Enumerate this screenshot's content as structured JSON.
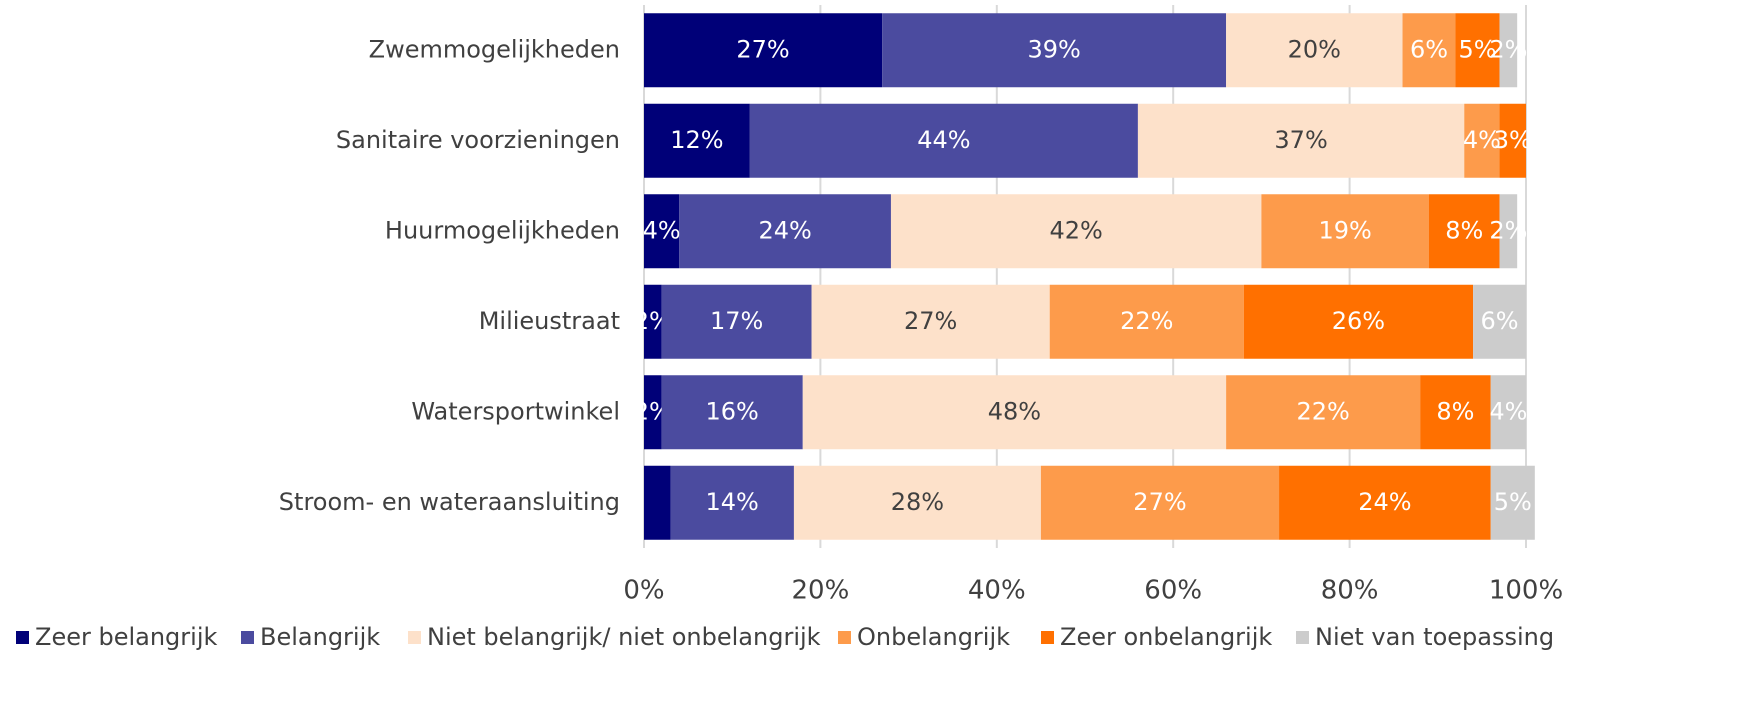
{
  "chart_data": {
    "type": "stacked-barh",
    "categories": [
      "Zwemmogelijkheden",
      "Sanitaire voorzieningen",
      "Huurmogelijkheden",
      "Milieustraat",
      "Watersportwinkel",
      "Stroom- en wateraansluiting"
    ],
    "series": [
      {
        "name": "Zeer belangrijk",
        "color": "#000078",
        "values": [
          27,
          12,
          4,
          2,
          2,
          3
        ],
        "value_labels": [
          "27%",
          "12%",
          "4%",
          "2%",
          "2%",
          null
        ]
      },
      {
        "name": "Belangrijk",
        "color": "#4b4b9f",
        "values": [
          39,
          44,
          24,
          17,
          16,
          14
        ],
        "value_labels": [
          "39%",
          "44%",
          "24%",
          "17%",
          "16%",
          "14%"
        ]
      },
      {
        "name": "Niet belangrijk/ niet onbelangrijk",
        "color": "#fde1ca",
        "values": [
          20,
          37,
          42,
          27,
          48,
          28
        ],
        "value_labels": [
          "20%",
          "37%",
          "42%",
          "27%",
          "48%",
          "28%"
        ]
      },
      {
        "name": "Onbelangrijk",
        "color": "#fd9b4b",
        "values": [
          6,
          4,
          19,
          22,
          22,
          27
        ],
        "value_labels": [
          "6%",
          "4%",
          "19%",
          "22%",
          "22%",
          "27%"
        ]
      },
      {
        "name": "Zeer onbelangrijk",
        "color": "#ff7000",
        "values": [
          5,
          3,
          8,
          26,
          8,
          24
        ],
        "value_labels": [
          "5%",
          "3%",
          "8%",
          "26%",
          "8%",
          "24%"
        ]
      },
      {
        "name": "Niet van toepassing",
        "color": "#cccccc",
        "values": [
          2,
          0,
          2,
          6,
          4,
          5
        ],
        "value_labels": [
          "2%",
          null,
          "2%",
          "6%",
          "4%",
          "5%"
        ]
      }
    ],
    "xlim": [
      0,
      100
    ],
    "xticks": [
      {
        "value": 0,
        "label": "0%"
      },
      {
        "value": 20,
        "label": "20%"
      },
      {
        "value": 40,
        "label": "40%"
      },
      {
        "value": 60,
        "label": "60%"
      },
      {
        "value": 80,
        "label": "80%"
      },
      {
        "value": 100,
        "label": "100%"
      }
    ],
    "grid": true,
    "legend": "bottom"
  }
}
